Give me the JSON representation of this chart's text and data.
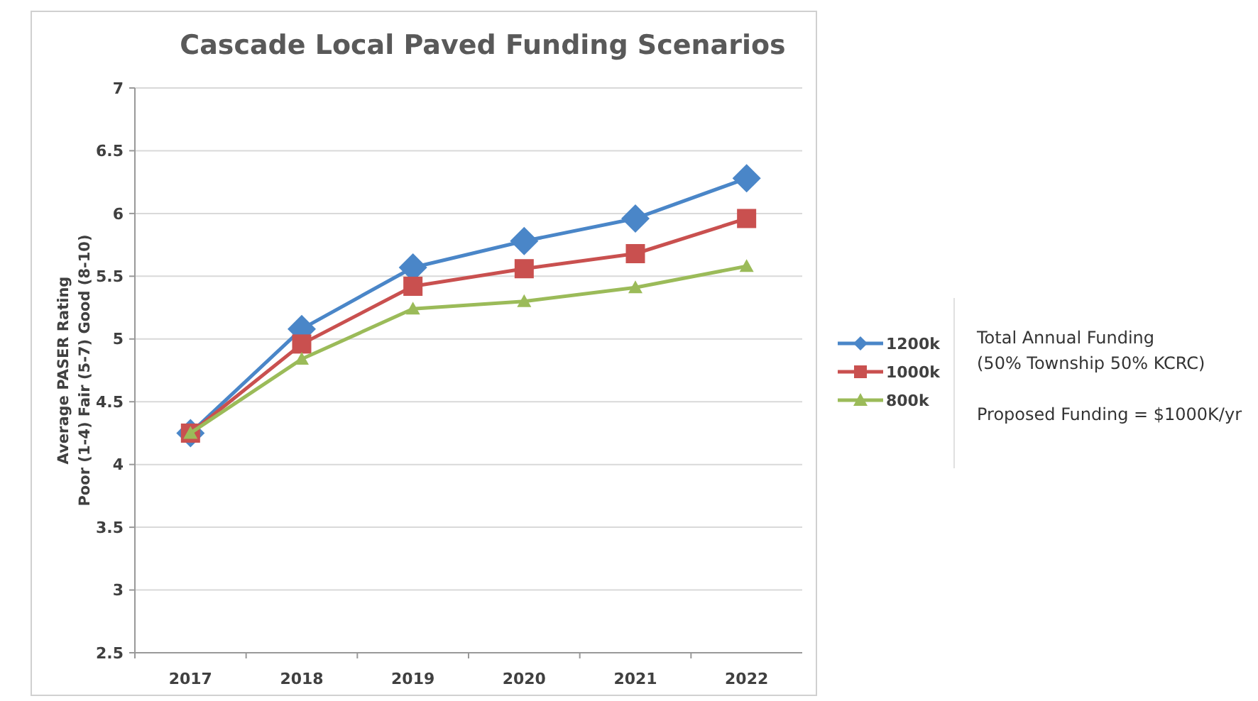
{
  "chart_data": {
    "type": "line",
    "title": "Cascade Local Paved Funding Scenarios",
    "ylabel": "Average PASER Rating\nPoor  (1-4)  Fair (5-7)  Good (8-10)",
    "categories": [
      "2017",
      "2018",
      "2019",
      "2020",
      "2021",
      "2022"
    ],
    "series": [
      {
        "name": "1200k",
        "color": "#4a86c8",
        "marker": "diamond",
        "values": [
          4.25,
          5.08,
          5.57,
          5.78,
          5.96,
          6.28
        ]
      },
      {
        "name": "1000k",
        "color": "#c9504f",
        "marker": "square",
        "values": [
          4.25,
          4.96,
          5.42,
          5.56,
          5.68,
          5.96
        ]
      },
      {
        "name": "800k",
        "color": "#9bbb59",
        "marker": "triangle",
        "values": [
          4.25,
          4.84,
          5.24,
          5.3,
          5.41,
          5.58
        ]
      }
    ],
    "ylim": [
      2.5,
      7
    ],
    "yticks": [
      2.5,
      3,
      3.5,
      4,
      4.5,
      5,
      5.5,
      6,
      6.5,
      7
    ],
    "grid": "y",
    "legend": "right",
    "annotations": [
      "Total Annual Funding\n(50% Township 50% KCRC)",
      "Proposed Funding = $1000K/yr"
    ]
  }
}
